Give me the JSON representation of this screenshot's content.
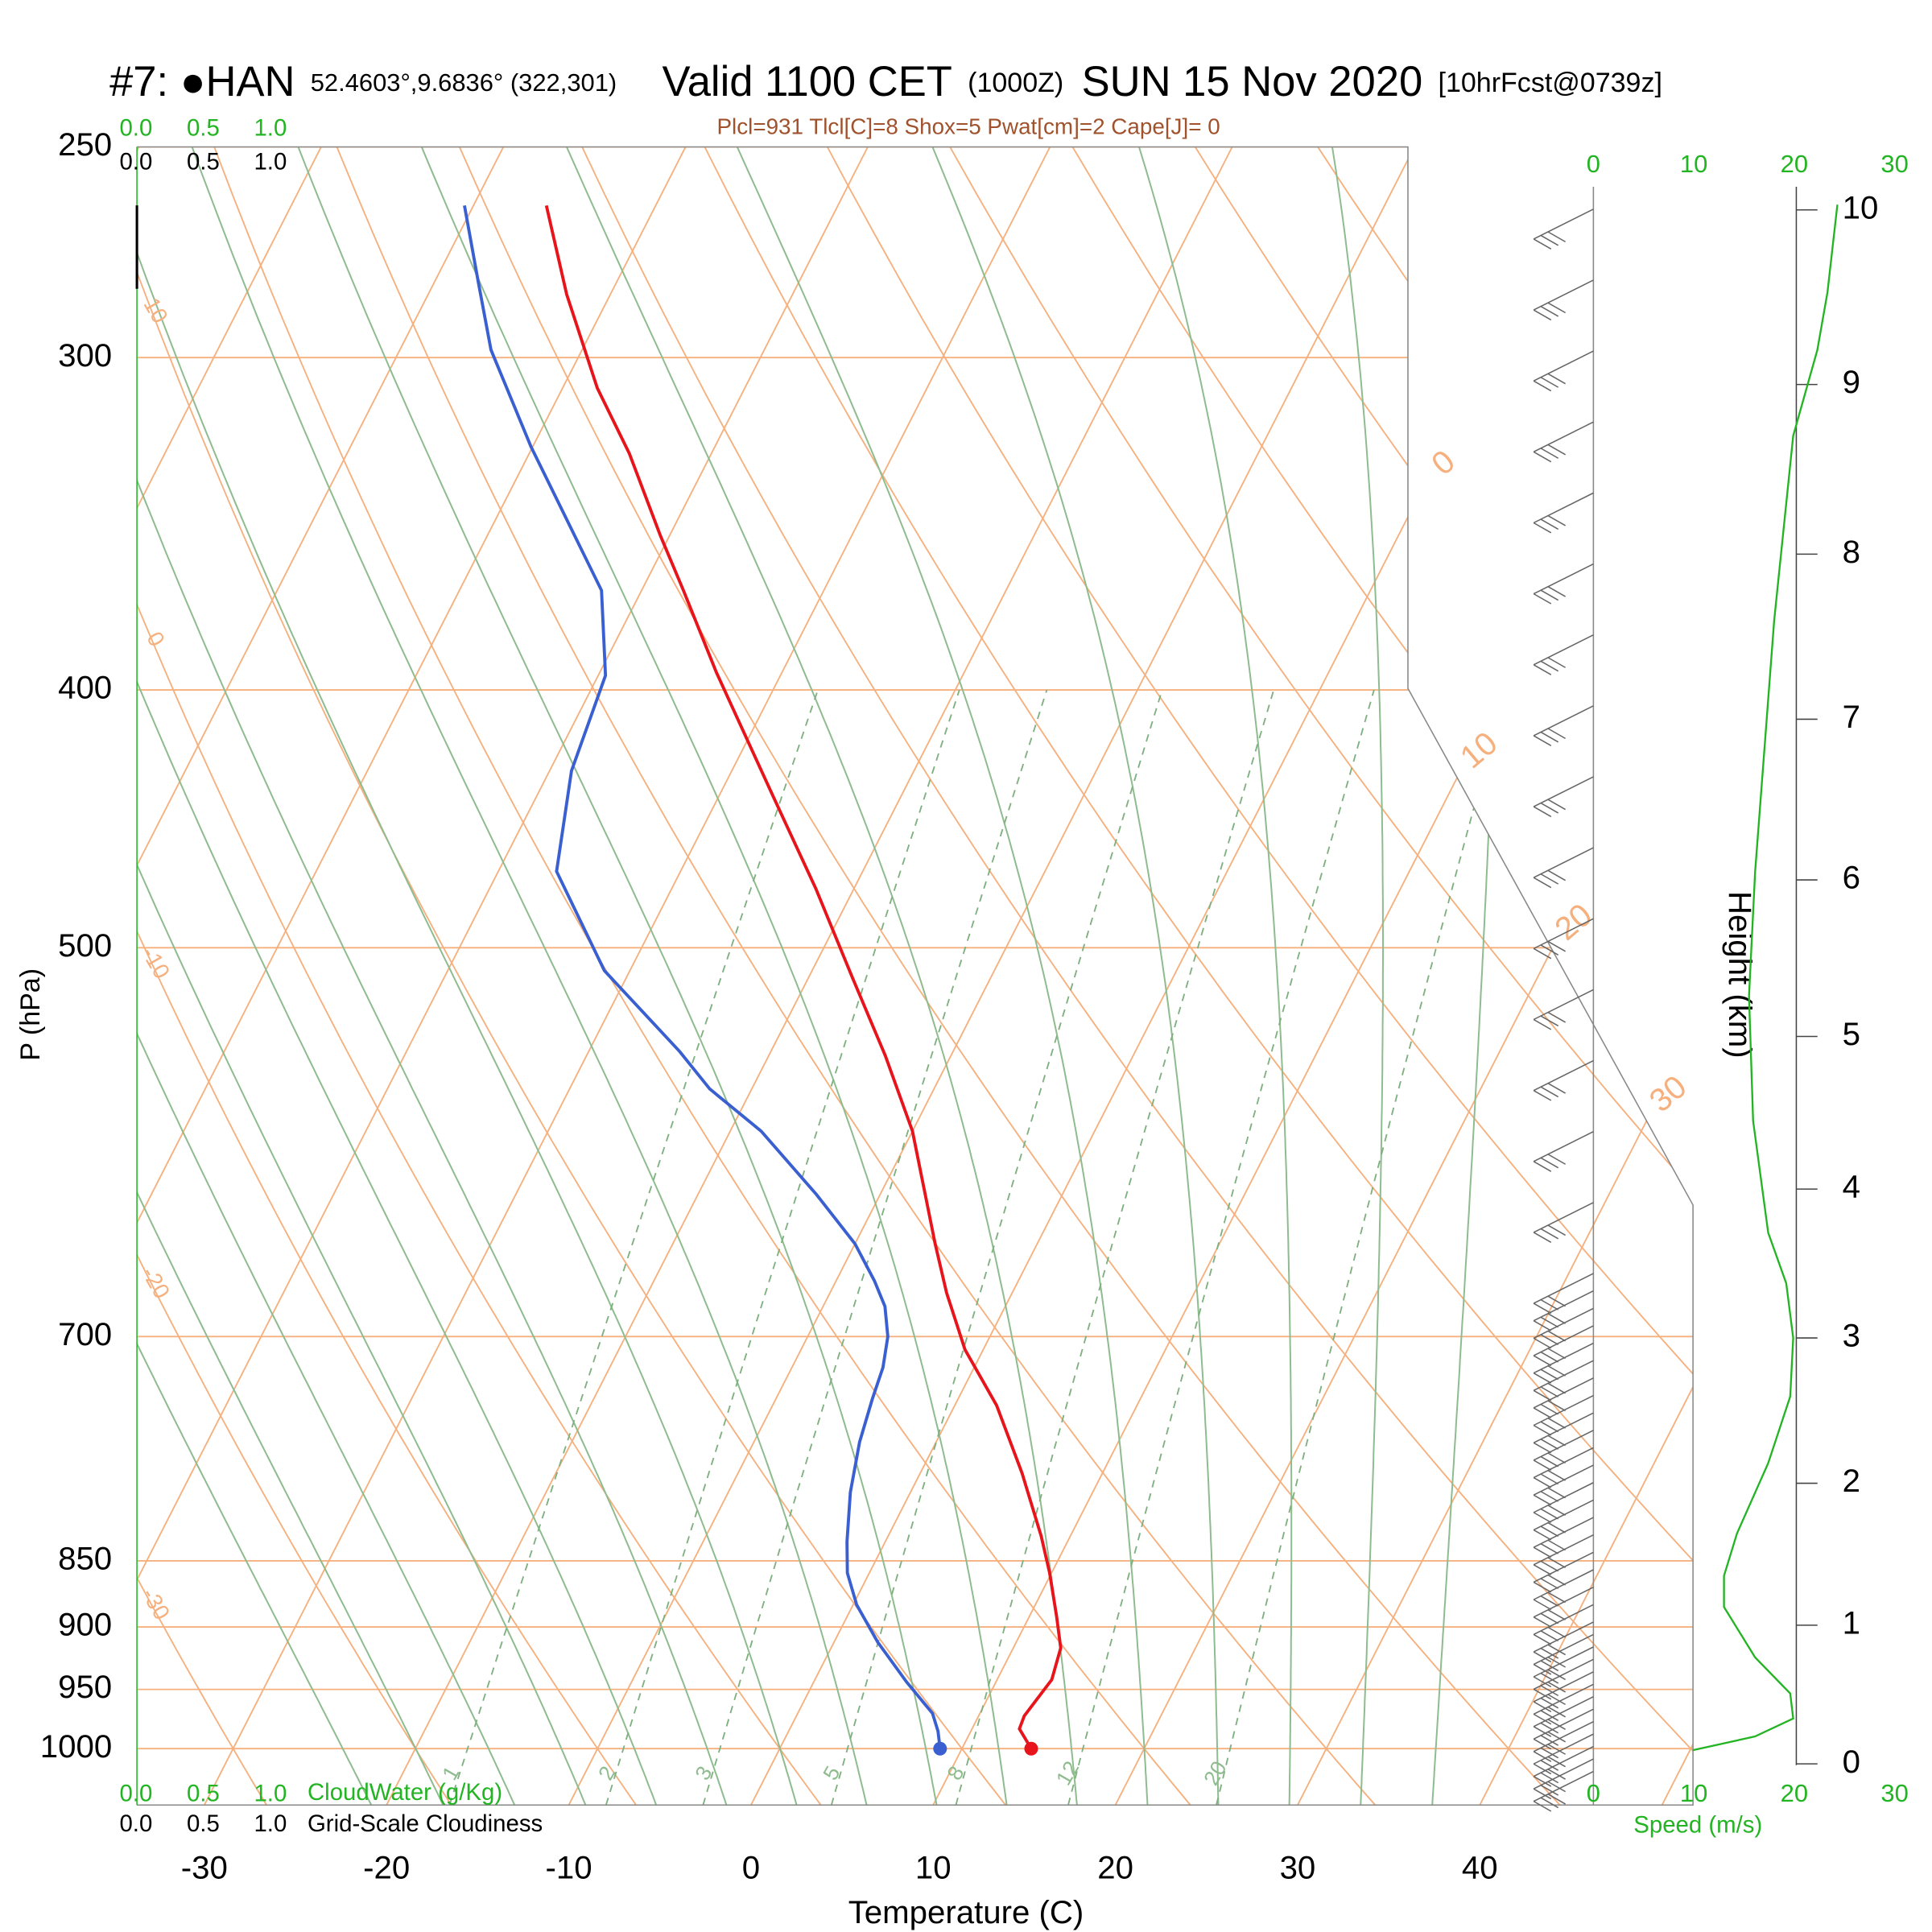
{
  "chart_data": {
    "type": "skewt",
    "title": {
      "station": "#7: ●HAN",
      "location": "52.4603°,9.6836° (322,301)",
      "valid": "Valid 1100 CET",
      "zulu": "(1000Z)",
      "date": "SUN 15 Nov 2020",
      "forecast": "[10hrFcst@0739z]"
    },
    "subtitle": "Plcl=931 Tlcl[C]=8 Shox=5 Pwat[cm]=2 Cape[J]= 0",
    "x_label": "Temperature (C)",
    "y_label": "P (hPa)",
    "y2_label": "Height (km)",
    "speed_label": "Speed (m/s)",
    "cloudwater_label": "CloudWater (g/Kg)",
    "cloudiness_label": "Grid-Scale Cloudiness",
    "xlim": [
      -33.7,
      51.7
    ],
    "xticks": [
      -30,
      -20,
      -10,
      0,
      10,
      20,
      30,
      40
    ],
    "ylim": [
      1050,
      250
    ],
    "yticks": [
      250,
      300,
      400,
      500,
      700,
      850,
      900,
      950,
      1000
    ],
    "log_y": true,
    "y2ticks": [
      0,
      1,
      2,
      3,
      4,
      5,
      6,
      7,
      8,
      9,
      10
    ],
    "cloud_ticks": [
      {
        "value": 0,
        "label": "0.0"
      },
      {
        "value": 0.5,
        "label": "0.5"
      },
      {
        "value": 1,
        "label": "1.0"
      }
    ],
    "isotherm_labels": [
      0,
      10,
      20,
      30
    ],
    "dry_adiabat_labels": [
      10,
      0,
      -10,
      -20,
      -30
    ],
    "mixing_ratio_labels": [
      1,
      2,
      3,
      5,
      8,
      12,
      20
    ],
    "series": [
      {
        "color": "#e8141c",
        "pressure": [
          1000,
          983,
          972,
          942,
          916.5,
          892,
          859,
          832,
          788,
          743,
          708,
          674,
          646,
          586,
          549,
          513,
          475,
          438,
          394,
          367,
          350,
          326,
          308,
          284,
          263
        ],
        "values": [
          13.8,
          12.6,
          12.5,
          13.0,
          12.6,
          11.5,
          9.9,
          8.4,
          5.6,
          2.3,
          -1.0,
          -3.6,
          -5.6,
          -10.0,
          -13.6,
          -17.6,
          -22.1,
          -27.1,
          -33.6,
          -37.7,
          -40.5,
          -44.5,
          -48.1,
          -52.4,
          -56.0
        ]
      },
      {
        "color": "#3a5fd0",
        "pressure": [
          1000,
          985,
          970,
          944,
          912,
          883,
          859,
          836,
          801,
          767,
          739,
          719,
          700,
          682,
          667,
          646,
          619,
          586,
          565,
          547,
          510,
          468,
          429,
          395,
          367,
          324,
          298,
          281,
          263
        ],
        "values": [
          8.8,
          8.2,
          7.4,
          5.1,
          2.4,
          0.2,
          -1.2,
          -2.1,
          -3.3,
          -4.2,
          -4.7,
          -5.0,
          -5.6,
          -6.6,
          -7.9,
          -10.0,
          -13.5,
          -18.3,
          -22.3,
          -25.0,
          -31.4,
          -36.8,
          -38.8,
          -39.6,
          -42.2,
          -50.1,
          -55.0,
          -57.6,
          -60.5
        ]
      }
    ],
    "speed": {
      "color": "#22b422",
      "xlim": [
        0,
        30
      ],
      "xticks": [
        0,
        10,
        20,
        30
      ],
      "heights": [
        0.1,
        0.2,
        0.33,
        0.51,
        0.77,
        1.13,
        1.35,
        1.65,
        2.14,
        2.6,
        3.0,
        3.37,
        3.71,
        4.45,
        5.26,
        6.05,
        7.6,
        8.7,
        9.2,
        9.53,
        10.03
      ],
      "values": [
        9.9,
        16.1,
        19.9,
        19.6,
        16.1,
        13.0,
        13.0,
        14.3,
        17.4,
        19.6,
        19.9,
        19.2,
        17.4,
        15.9,
        15.5,
        16.1,
        18.0,
        19.9,
        22.3,
        23.3,
        24.3
      ]
    }
  }
}
